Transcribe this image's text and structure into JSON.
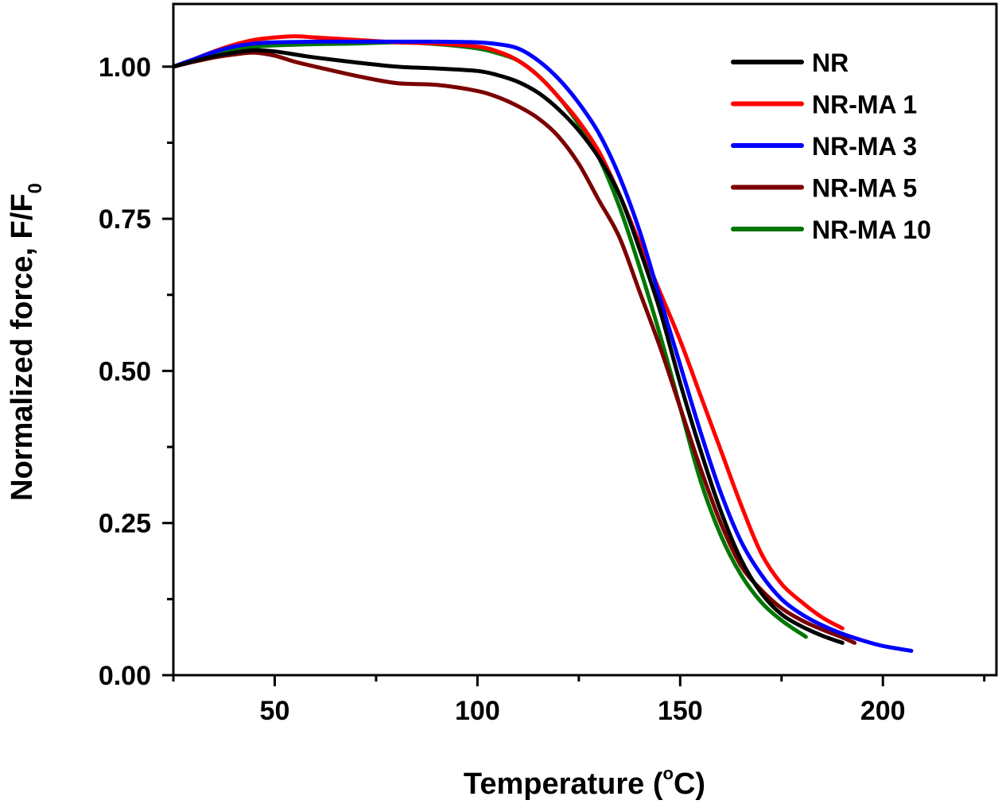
{
  "chart_data": {
    "type": "line",
    "title": "",
    "xlabel": "Temperature (°C)",
    "xlabel_parts": {
      "main": "Temperature (",
      "sup": "o",
      "unit": "C)"
    },
    "ylabel": "Normalized force, F/F0",
    "ylabel_parts": {
      "main": "Normalized force, F/F",
      "sub": "0"
    },
    "xlim": [
      25,
      228
    ],
    "ylim": [
      0,
      1.103
    ],
    "xticks": [
      50,
      100,
      150,
      200
    ],
    "xticks_minor": [
      25,
      75,
      125,
      175,
      225
    ],
    "xtick_labels": [
      "50",
      "100",
      "150",
      "200"
    ],
    "yticks": [
      0,
      0.25,
      0.5,
      0.75,
      1.0
    ],
    "yticks_minor": [
      0.125,
      0.375,
      0.625,
      0.875
    ],
    "ytick_labels": [
      "0.00",
      "0.25",
      "0.50",
      "0.75",
      "1.00"
    ],
    "grid": false,
    "legend_position": "top-right",
    "series": [
      {
        "name": "NR",
        "color": "#000000",
        "points": [
          [
            25,
            1.0
          ],
          [
            30,
            1.009
          ],
          [
            35,
            1.017
          ],
          [
            40,
            1.023
          ],
          [
            45,
            1.027
          ],
          [
            50,
            1.025
          ],
          [
            55,
            1.02
          ],
          [
            60,
            1.015
          ],
          [
            70,
            1.007
          ],
          [
            80,
            1.0
          ],
          [
            90,
            0.997
          ],
          [
            100,
            0.993
          ],
          [
            105,
            0.986
          ],
          [
            110,
            0.975
          ],
          [
            115,
            0.957
          ],
          [
            120,
            0.93
          ],
          [
            125,
            0.895
          ],
          [
            130,
            0.85
          ],
          [
            135,
            0.79
          ],
          [
            140,
            0.7
          ],
          [
            145,
            0.6
          ],
          [
            150,
            0.48
          ],
          [
            155,
            0.37
          ],
          [
            160,
            0.27
          ],
          [
            165,
            0.19
          ],
          [
            170,
            0.135
          ],
          [
            175,
            0.1
          ],
          [
            180,
            0.08
          ],
          [
            185,
            0.065
          ],
          [
            190,
            0.053
          ]
        ]
      },
      {
        "name": "NR-MA 1",
        "color": "#ff0000",
        "points": [
          [
            25,
            1.0
          ],
          [
            30,
            1.012
          ],
          [
            35,
            1.025
          ],
          [
            40,
            1.036
          ],
          [
            45,
            1.044
          ],
          [
            50,
            1.048
          ],
          [
            55,
            1.05
          ],
          [
            60,
            1.048
          ],
          [
            70,
            1.044
          ],
          [
            80,
            1.04
          ],
          [
            90,
            1.038
          ],
          [
            100,
            1.033
          ],
          [
            105,
            1.025
          ],
          [
            110,
            1.01
          ],
          [
            115,
            0.985
          ],
          [
            120,
            0.95
          ],
          [
            125,
            0.91
          ],
          [
            130,
            0.86
          ],
          [
            135,
            0.79
          ],
          [
            140,
            0.71
          ],
          [
            145,
            0.63
          ],
          [
            150,
            0.55
          ],
          [
            155,
            0.46
          ],
          [
            160,
            0.37
          ],
          [
            165,
            0.28
          ],
          [
            170,
            0.2
          ],
          [
            175,
            0.15
          ],
          [
            180,
            0.12
          ],
          [
            185,
            0.095
          ],
          [
            190,
            0.077
          ]
        ]
      },
      {
        "name": "NR-MA 3",
        "color": "#0000ff",
        "points": [
          [
            25,
            1.0
          ],
          [
            30,
            1.012
          ],
          [
            35,
            1.024
          ],
          [
            40,
            1.033
          ],
          [
            45,
            1.038
          ],
          [
            50,
            1.04
          ],
          [
            60,
            1.041
          ],
          [
            70,
            1.041
          ],
          [
            80,
            1.041
          ],
          [
            90,
            1.041
          ],
          [
            100,
            1.04
          ],
          [
            105,
            1.037
          ],
          [
            110,
            1.03
          ],
          [
            115,
            1.01
          ],
          [
            120,
            0.98
          ],
          [
            125,
            0.94
          ],
          [
            130,
            0.89
          ],
          [
            135,
            0.82
          ],
          [
            140,
            0.73
          ],
          [
            145,
            0.62
          ],
          [
            150,
            0.51
          ],
          [
            155,
            0.4
          ],
          [
            160,
            0.3
          ],
          [
            165,
            0.22
          ],
          [
            170,
            0.165
          ],
          [
            175,
            0.125
          ],
          [
            180,
            0.1
          ],
          [
            185,
            0.082
          ],
          [
            190,
            0.068
          ],
          [
            195,
            0.057
          ],
          [
            200,
            0.048
          ],
          [
            207,
            0.04
          ]
        ]
      },
      {
        "name": "NR-MA 5",
        "color": "#7b0000",
        "points": [
          [
            25,
            1.0
          ],
          [
            30,
            1.008
          ],
          [
            35,
            1.015
          ],
          [
            40,
            1.02
          ],
          [
            45,
            1.023
          ],
          [
            50,
            1.018
          ],
          [
            55,
            1.008
          ],
          [
            60,
            1.0
          ],
          [
            70,
            0.985
          ],
          [
            80,
            0.973
          ],
          [
            90,
            0.97
          ],
          [
            100,
            0.96
          ],
          [
            105,
            0.95
          ],
          [
            110,
            0.935
          ],
          [
            115,
            0.915
          ],
          [
            120,
            0.885
          ],
          [
            125,
            0.84
          ],
          [
            130,
            0.78
          ],
          [
            135,
            0.72
          ],
          [
            140,
            0.63
          ],
          [
            145,
            0.54
          ],
          [
            150,
            0.44
          ],
          [
            155,
            0.34
          ],
          [
            160,
            0.25
          ],
          [
            165,
            0.18
          ],
          [
            170,
            0.14
          ],
          [
            175,
            0.11
          ],
          [
            180,
            0.09
          ],
          [
            185,
            0.075
          ],
          [
            190,
            0.062
          ],
          [
            193,
            0.053
          ]
        ]
      },
      {
        "name": "NR-MA 10",
        "color": "#007700",
        "points": [
          [
            25,
            1.0
          ],
          [
            30,
            1.01
          ],
          [
            35,
            1.02
          ],
          [
            40,
            1.028
          ],
          [
            45,
            1.033
          ],
          [
            50,
            1.035
          ],
          [
            60,
            1.037
          ],
          [
            70,
            1.038
          ],
          [
            80,
            1.04
          ],
          [
            90,
            1.037
          ],
          [
            100,
            1.03
          ],
          [
            105,
            1.022
          ],
          [
            110,
            1.01
          ],
          [
            115,
            0.985
          ],
          [
            120,
            0.95
          ],
          [
            125,
            0.905
          ],
          [
            130,
            0.85
          ],
          [
            135,
            0.77
          ],
          [
            140,
            0.67
          ],
          [
            145,
            0.56
          ],
          [
            150,
            0.44
          ],
          [
            155,
            0.32
          ],
          [
            160,
            0.23
          ],
          [
            165,
            0.165
          ],
          [
            170,
            0.12
          ],
          [
            175,
            0.09
          ],
          [
            181,
            0.063
          ]
        ]
      }
    ]
  }
}
